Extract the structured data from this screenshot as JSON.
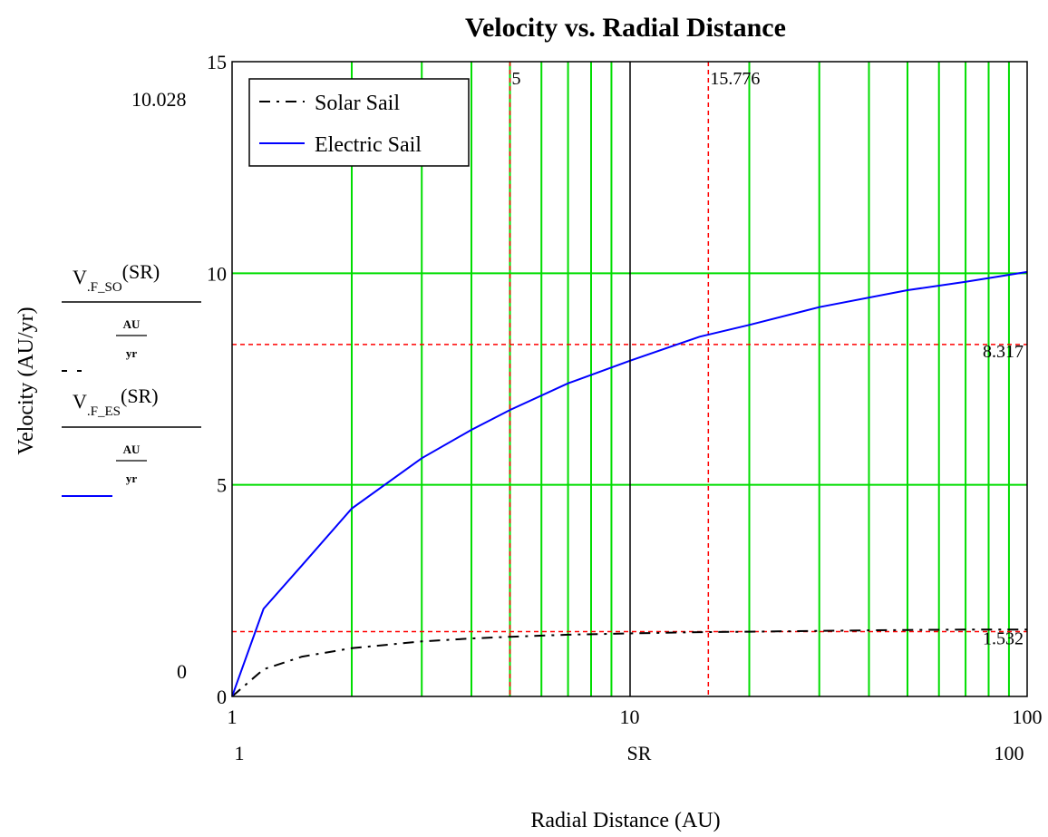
{
  "chart_data": {
    "type": "line",
    "title": "Velocity vs. Radial Distance",
    "xlabel": "Radial Distance (AU)",
    "ylabel": "Velocity (AU/yr)",
    "x_scale": "log",
    "xlim": [
      1,
      100
    ],
    "ylim": [
      0,
      15
    ],
    "grid": true,
    "legend_position": "top-left",
    "x_ticks": [
      "1",
      "10",
      "100"
    ],
    "x_range_labels": [
      "1",
      "SR",
      "100"
    ],
    "y_ticks": [
      "0",
      "5",
      "10",
      "15"
    ],
    "y_range_labels": [
      "10.028",
      "0"
    ],
    "series": [
      {
        "name": "Solar Sail",
        "style": "dash-dot",
        "color": "#000000",
        "x": [
          1,
          1.2,
          1.5,
          2,
          3,
          4,
          5,
          7,
          10,
          15,
          20,
          30,
          50,
          70,
          100
        ],
        "y": [
          0,
          0.64,
          0.94,
          1.14,
          1.3,
          1.37,
          1.41,
          1.46,
          1.49,
          1.52,
          1.53,
          1.55,
          1.57,
          1.58,
          1.58
        ]
      },
      {
        "name": "Electric Sail",
        "style": "solid",
        "color": "#0000ff",
        "x": [
          1,
          1.2,
          1.5,
          2,
          3,
          4,
          5,
          7,
          10,
          15,
          20,
          30,
          50,
          70,
          100
        ],
        "y": [
          0,
          2.07,
          3.1,
          4.44,
          5.63,
          6.3,
          6.77,
          7.4,
          7.93,
          8.5,
          8.78,
          9.2,
          9.6,
          9.8,
          10.03
        ]
      }
    ],
    "y_axis_expressions": [
      {
        "numerator_base": "V",
        "numerator_sub": ".F_SO",
        "numerator_arg": "(SR)",
        "unit_num": "AU",
        "unit_den": "yr"
      },
      {
        "numerator_base": "V",
        "numerator_sub": ".F_ES",
        "numerator_arg": "(SR)",
        "unit_num": "AU",
        "unit_den": "yr"
      }
    ],
    "markers": {
      "vertical": [
        5,
        15.776
      ],
      "horizontal": [
        8.317,
        1.532
      ],
      "vertical_labels": [
        "5",
        "15.776"
      ],
      "horizontal_labels": [
        "8.317",
        "1.532"
      ],
      "color": "#ff0000"
    },
    "colors": {
      "grid": "#00dd00",
      "axis": "#000000"
    }
  }
}
